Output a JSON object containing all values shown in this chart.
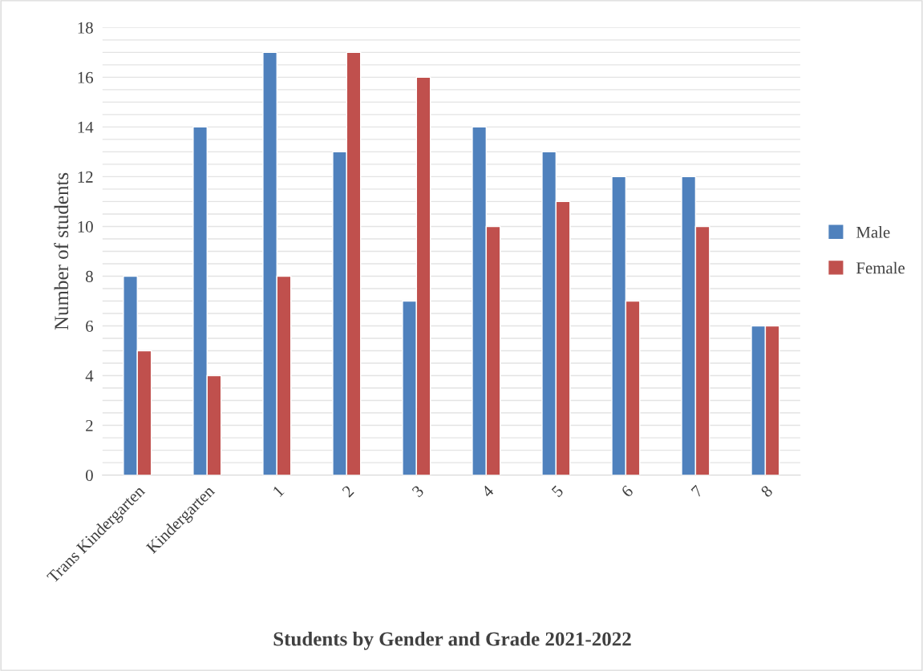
{
  "chart_data": {
    "type": "bar",
    "title": "Students by Gender and Grade 2021-2022",
    "ylabel": "Number of students",
    "categories": [
      "Trans Kindergarten",
      "Kindergarten",
      "1",
      "2",
      "3",
      "4",
      "5",
      "6",
      "7",
      "8"
    ],
    "series": [
      {
        "name": "Male",
        "color": "#4f81bd",
        "values": [
          8,
          14,
          17,
          13,
          7,
          14,
          13,
          12,
          12,
          6
        ]
      },
      {
        "name": "Female",
        "color": "#c0504d",
        "values": [
          5,
          4,
          8,
          17,
          16,
          10,
          11,
          7,
          10,
          6
        ]
      }
    ],
    "ylim": [
      0,
      18
    ],
    "yticks": [
      0,
      {
        "value": 0.5,
        "label": null
      },
      {
        "value": 1,
        "label": null
      },
      {
        "value": 1.5,
        "label": null
      },
      2,
      {
        "value": 2.5,
        "label": null
      },
      {
        "value": 3,
        "label": null
      },
      {
        "value": 3.5,
        "label": null
      },
      4,
      {
        "value": 4.5,
        "label": null
      },
      {
        "value": 5,
        "label": null
      },
      {
        "value": 5.5,
        "label": null
      },
      6,
      {
        "value": 6.5,
        "label": null
      },
      {
        "value": 7,
        "label": null
      },
      {
        "value": 7.5,
        "label": null
      },
      8,
      {
        "value": 8.5,
        "label": null
      },
      {
        "value": 9,
        "label": null
      },
      {
        "value": 9.5,
        "label": null
      },
      10,
      {
        "value": 10.5,
        "label": null
      },
      {
        "value": 11,
        "label": null
      },
      {
        "value": 11.5,
        "label": null
      },
      12,
      {
        "value": 12.5,
        "label": null
      },
      {
        "value": 13,
        "label": null
      },
      {
        "value": 13.5,
        "label": null
      },
      14,
      {
        "value": 14.5,
        "label": null
      },
      {
        "value": 15,
        "label": null
      },
      {
        "value": 15.5,
        "label": null
      },
      16,
      {
        "value": 16.5,
        "label": null
      },
      {
        "value": 17,
        "label": null
      },
      {
        "value": 17.5,
        "label": null
      },
      18
    ],
    "grid": "y",
    "legend": "right"
  }
}
